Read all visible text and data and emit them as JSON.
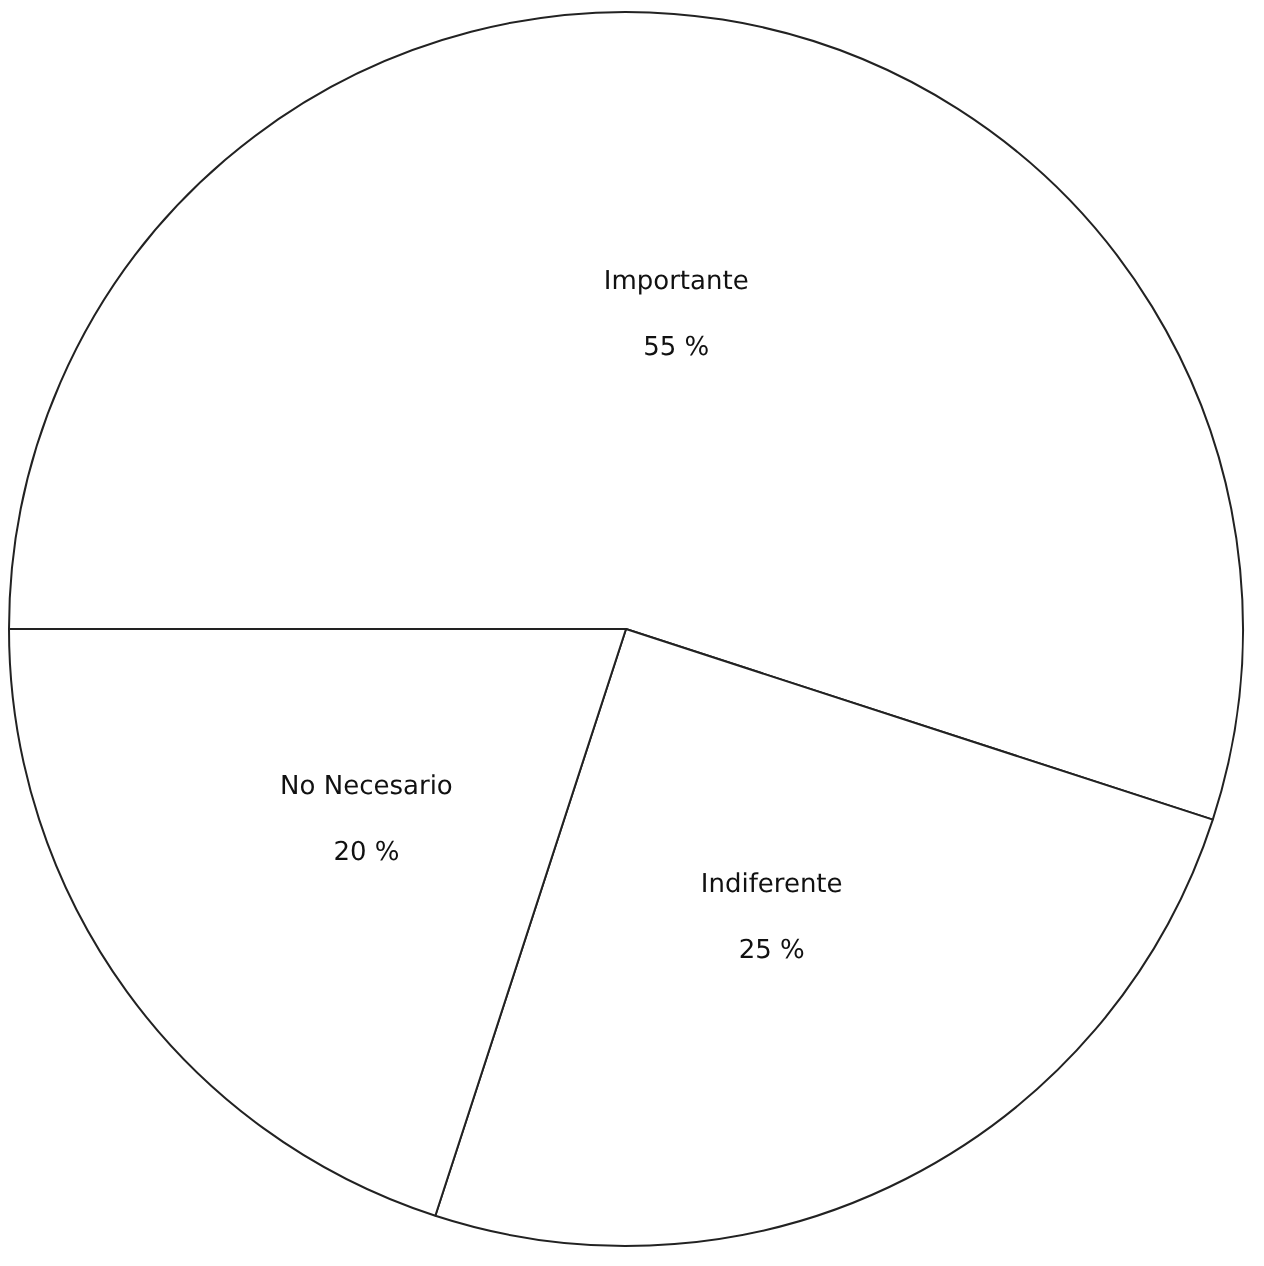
{
  "chart_data": {
    "type": "pie",
    "categories": [
      "Importante",
      "Indiferente",
      "No Necesario"
    ],
    "values": [
      55,
      25,
      20
    ],
    "value_labels": [
      "55 %",
      "25 %",
      "20 %"
    ],
    "colors": [
      "#ffffff",
      "#ffffff",
      "#ffffff"
    ],
    "legend": false
  }
}
